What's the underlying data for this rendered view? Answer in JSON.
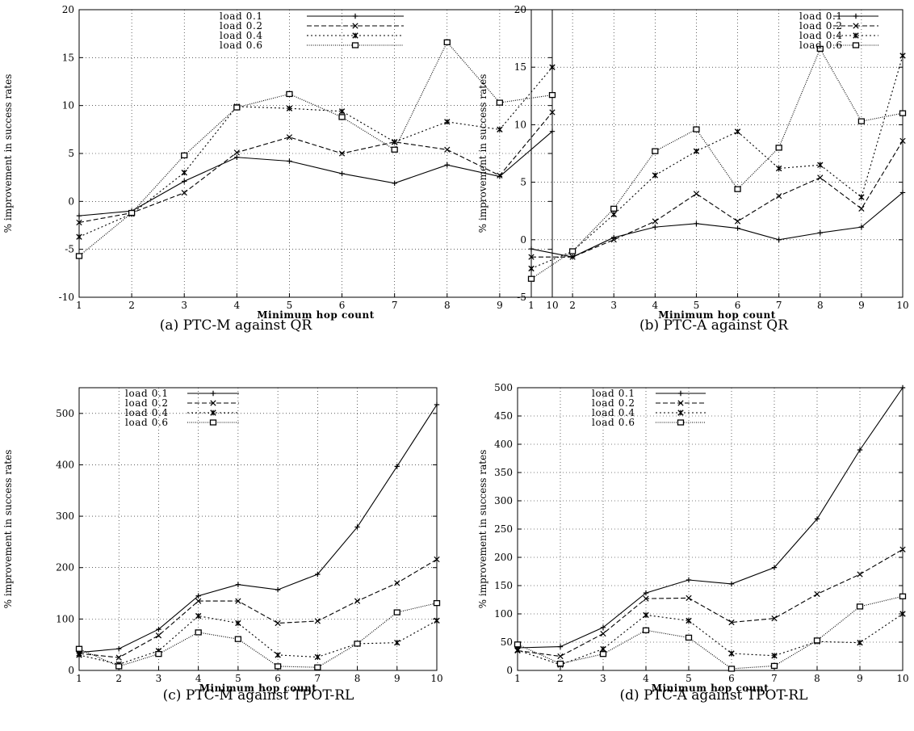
{
  "chart_data": [
    {
      "type": "line",
      "caption": "(a) PTC-M against QR",
      "xlabel": "Minimum hop count",
      "ylabel": "% improvement in success rates",
      "x": [
        1,
        2,
        3,
        4,
        5,
        6,
        7,
        8,
        9,
        10
      ],
      "xlim": [
        1,
        10
      ],
      "ylim": [
        -10,
        20
      ],
      "yticks": [
        -10,
        -5,
        0,
        5,
        10,
        15,
        20
      ],
      "grid": true,
      "legend_position": "top-right",
      "series": [
        {
          "name": "load 0.1",
          "marker": "plus",
          "dash": "solid",
          "values": [
            -1.5,
            -1.0,
            2.1,
            4.6,
            4.2,
            2.9,
            1.9,
            3.8,
            2.6,
            7.3
          ]
        },
        {
          "name": "load 0.2",
          "marker": "x",
          "dash": "dashed",
          "values": [
            -2.2,
            -1.2,
            0.9,
            5.1,
            6.7,
            5.0,
            6.2,
            5.4,
            2.7,
            9.3
          ]
        },
        {
          "name": "load 0.4",
          "marker": "star",
          "dash": "dotted",
          "values": [
            -3.7,
            -1.3,
            3.0,
            9.9,
            9.7,
            9.4,
            6.2,
            8.3,
            7.5,
            14.0
          ]
        },
        {
          "name": "load 0.6",
          "marker": "box",
          "dash": "fine",
          "values": [
            -5.7,
            -1.2,
            4.8,
            9.8,
            11.2,
            8.8,
            5.4,
            16.6,
            10.3,
            11.1
          ]
        }
      ]
    },
    {
      "type": "line",
      "caption": "(b) PTC-A against QR",
      "xlabel": "Minimum hop count",
      "ylabel": "% improvement in success rates",
      "x": [
        1,
        2,
        3,
        4,
        5,
        6,
        7,
        8,
        9,
        10
      ],
      "xlim": [
        1,
        10
      ],
      "ylim": [
        -5,
        20
      ],
      "yticks": [
        -5,
        0,
        5,
        10,
        15,
        20
      ],
      "grid": true,
      "legend_position": "top-right",
      "series": [
        {
          "name": "load 0.1",
          "marker": "plus",
          "dash": "solid",
          "values": [
            -0.8,
            -1.5,
            0.2,
            1.1,
            1.4,
            1.0,
            0.0,
            0.6,
            1.1,
            4.1
          ]
        },
        {
          "name": "load 0.2",
          "marker": "x",
          "dash": "dashed",
          "values": [
            -1.5,
            -1.5,
            0.0,
            1.6,
            4.0,
            1.6,
            3.8,
            5.4,
            2.7,
            8.6
          ]
        },
        {
          "name": "load 0.4",
          "marker": "star",
          "dash": "dotted",
          "values": [
            -2.5,
            -1.0,
            2.2,
            5.6,
            7.7,
            9.4,
            6.2,
            6.5,
            3.7,
            16.0
          ]
        },
        {
          "name": "load 0.6",
          "marker": "box",
          "dash": "fine",
          "values": [
            -3.4,
            -1.0,
            2.7,
            7.7,
            9.6,
            4.4,
            8.0,
            16.6,
            10.3,
            11.0
          ]
        }
      ]
    },
    {
      "type": "line",
      "caption": "(c) PTC-M against TPOT-RL",
      "xlabel": "Minimum hop count",
      "ylabel": "% improvement in success rates",
      "x": [
        1,
        2,
        3,
        4,
        5,
        6,
        7,
        8,
        9,
        10
      ],
      "xlim": [
        1,
        10
      ],
      "ylim": [
        0,
        550
      ],
      "yticks": [
        0,
        100,
        200,
        300,
        400,
        500
      ],
      "grid": true,
      "legend_position": "top-left",
      "series": [
        {
          "name": "load 0.1",
          "marker": "plus",
          "dash": "solid",
          "values": [
            35,
            42,
            80,
            145,
            167,
            157,
            187,
            279,
            397,
            517
          ]
        },
        {
          "name": "load 0.2",
          "marker": "x",
          "dash": "dashed",
          "values": [
            33,
            25,
            68,
            135,
            135,
            92,
            96,
            135,
            170,
            216
          ]
        },
        {
          "name": "load 0.4",
          "marker": "star",
          "dash": "dotted",
          "values": [
            30,
            12,
            38,
            106,
            92,
            30,
            26,
            52,
            54,
            97
          ]
        },
        {
          "name": "load 0.6",
          "marker": "box",
          "dash": "fine",
          "values": [
            42,
            8,
            32,
            74,
            61,
            8,
            6,
            52,
            113,
            131
          ]
        }
      ]
    },
    {
      "type": "line",
      "caption": "(d) PTC-A against TPOT-RL",
      "xlabel": "Minimum hop count",
      "ylabel": "% improvement in success rates",
      "x": [
        1,
        2,
        3,
        4,
        5,
        6,
        7,
        8,
        9,
        10
      ],
      "xlim": [
        1,
        10
      ],
      "ylim": [
        0,
        500
      ],
      "yticks": [
        0,
        50,
        100,
        150,
        200,
        250,
        300,
        350,
        400,
        450,
        500
      ],
      "grid": true,
      "legend_position": "top-left",
      "series": [
        {
          "name": "load 0.1",
          "marker": "plus",
          "dash": "solid",
          "values": [
            40,
            42,
            76,
            137,
            160,
            153,
            182,
            268,
            390,
            500
          ]
        },
        {
          "name": "load 0.2",
          "marker": "x",
          "dash": "dashed",
          "values": [
            35,
            25,
            65,
            127,
            128,
            85,
            92,
            135,
            170,
            214
          ]
        },
        {
          "name": "load 0.4",
          "marker": "star",
          "dash": "dotted",
          "values": [
            36,
            10,
            38,
            98,
            88,
            30,
            26,
            51,
            49,
            100
          ]
        },
        {
          "name": "load 0.6",
          "marker": "box",
          "dash": "fine",
          "values": [
            46,
            12,
            29,
            71,
            58,
            3,
            8,
            53,
            113,
            131
          ]
        }
      ]
    }
  ]
}
